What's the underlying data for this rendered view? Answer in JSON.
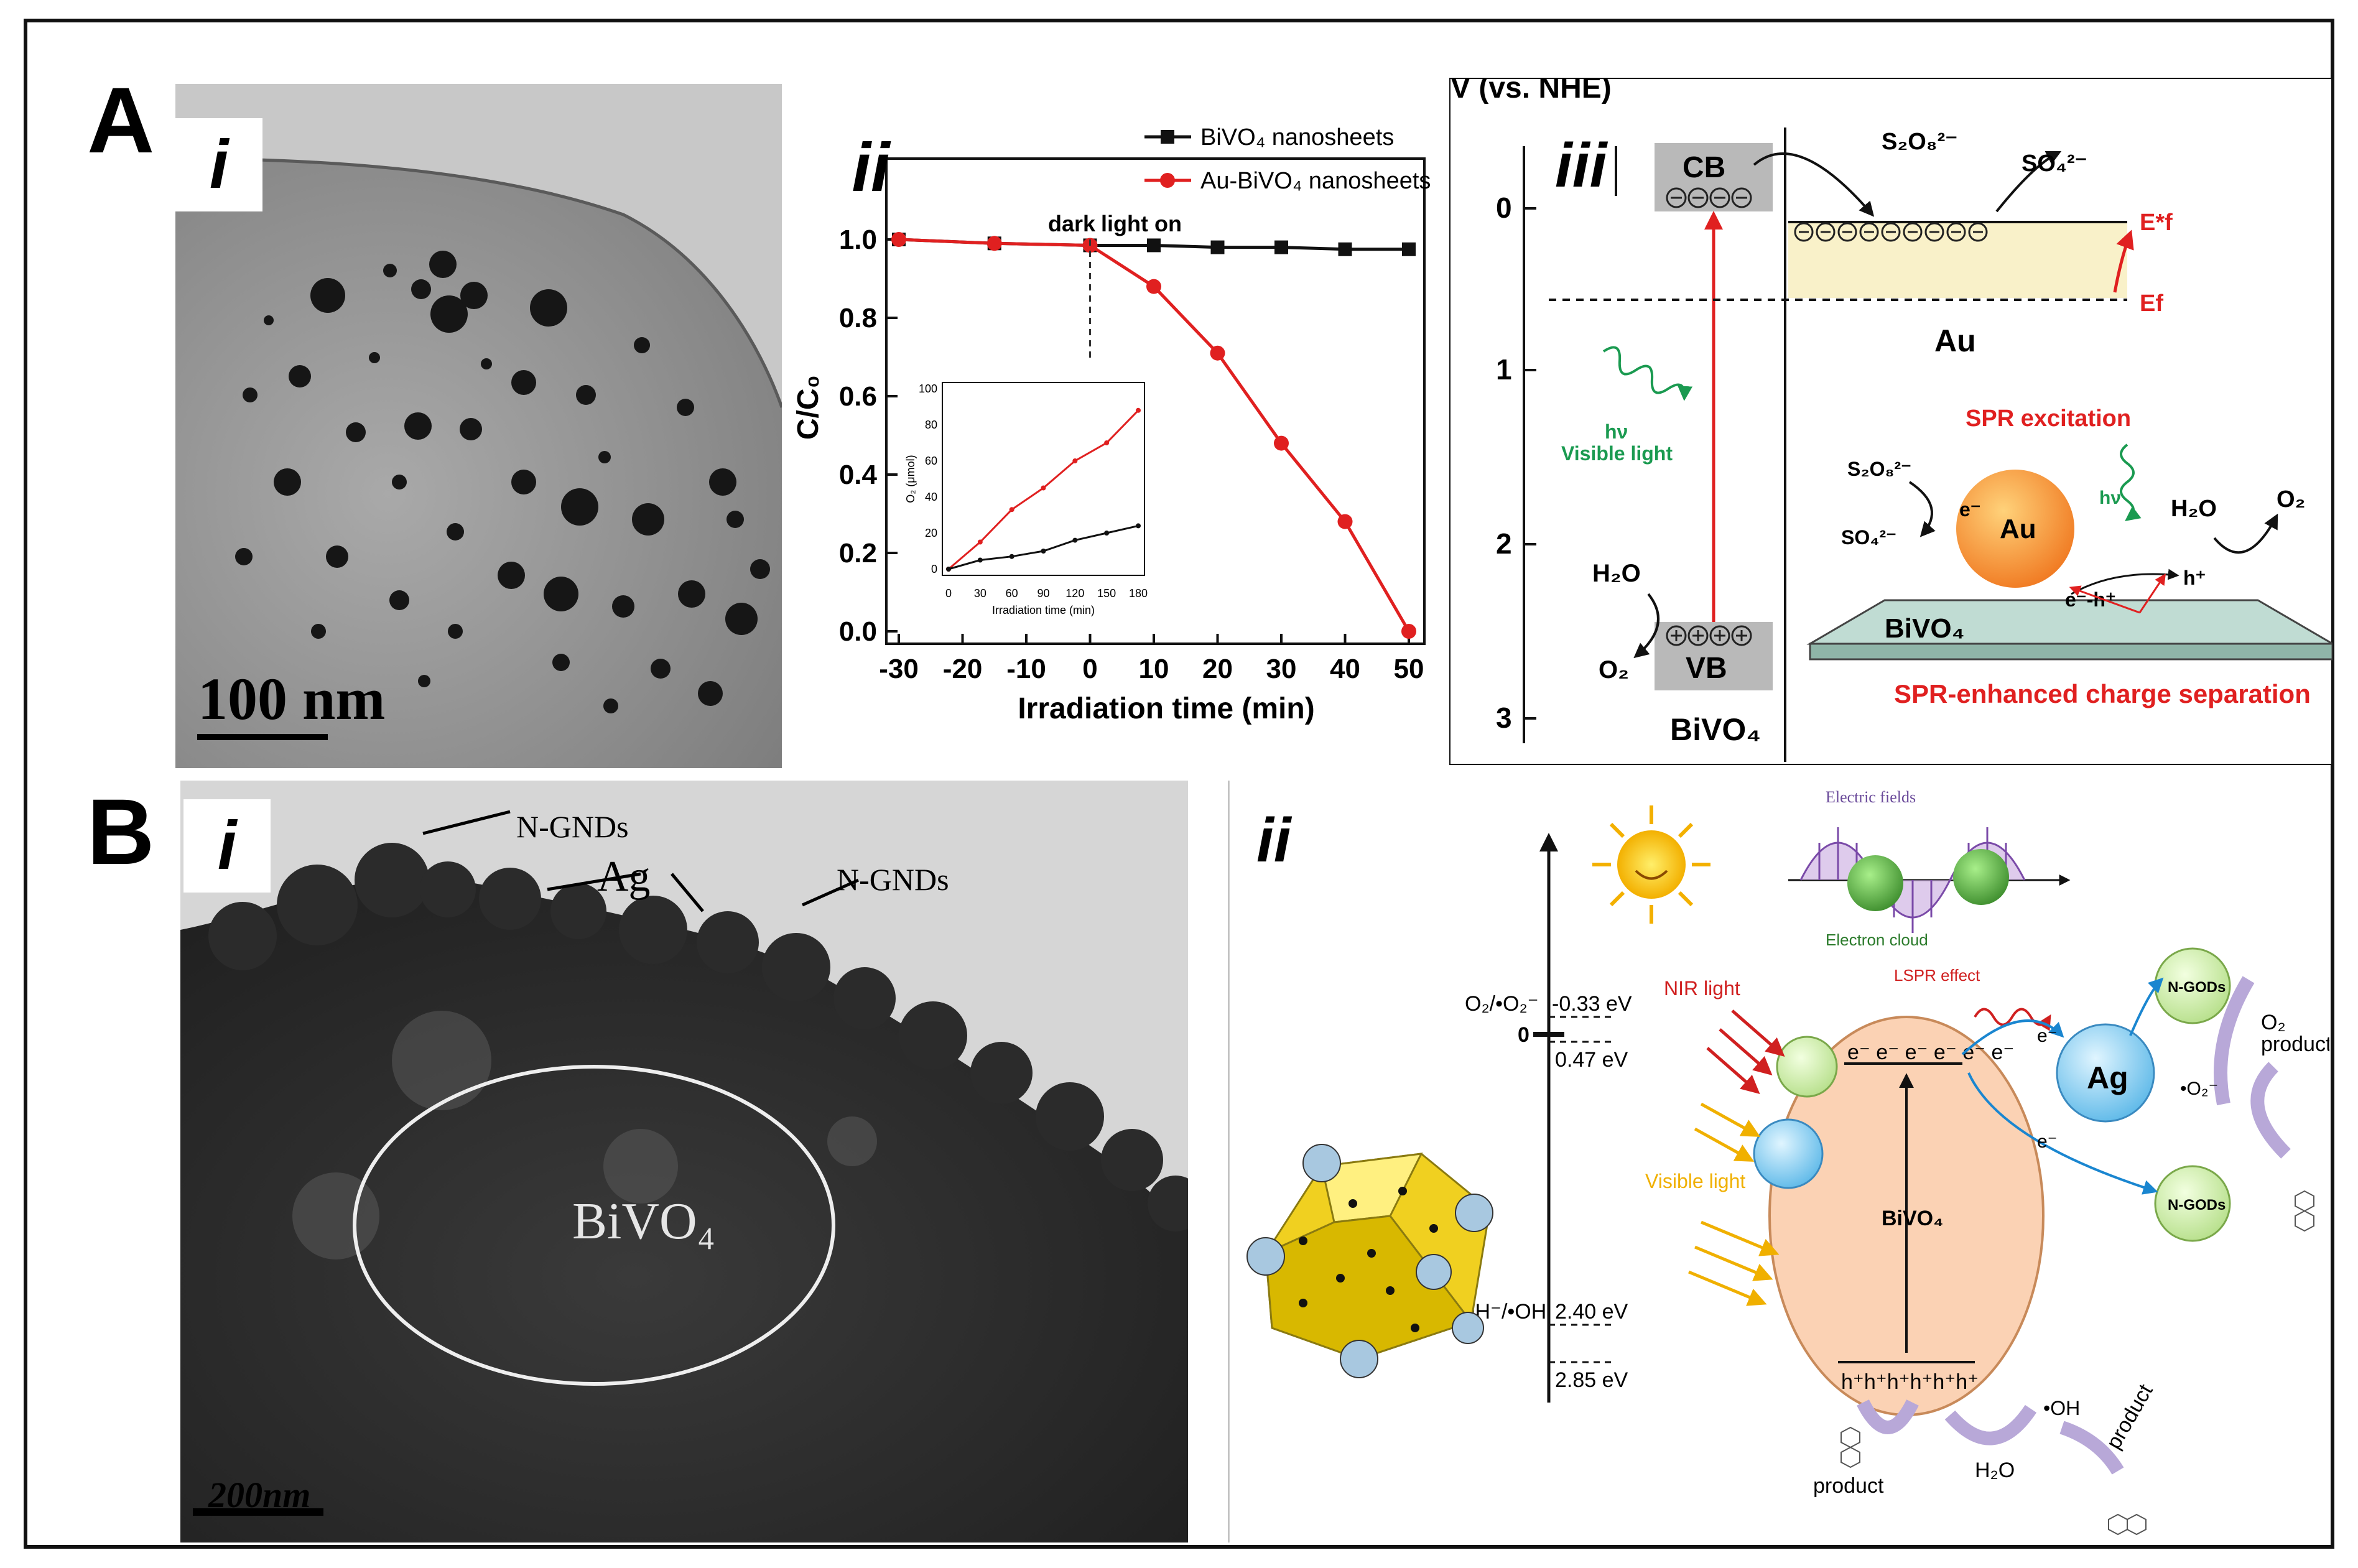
{
  "panel_a": {
    "letter": "A",
    "i": {
      "label": "i",
      "scale_bar": "100 nm"
    },
    "ii": {
      "label": "ii",
      "dark": "dark",
      "light_on": "light on"
    },
    "iii": {
      "label": "iii",
      "y_title": "V (vs. NHE)",
      "y_ticks": [
        "0",
        "1",
        "2",
        "3"
      ],
      "cb": "CB",
      "vb": "VB",
      "s2o8": "S₂O₈²⁻",
      "so4": "SO₄²⁻",
      "ef_star": "E*f",
      "ef": "Ef",
      "au": "Au",
      "hv": "hν",
      "visible_light": "Visible light",
      "h2o": "H₂O",
      "o2": "O₂",
      "bivo4": "BiVO₄",
      "spr_excitation": "SPR excitation",
      "eh_pair": "e⁻-h⁺",
      "e_minus": "e⁻",
      "h_plus": "h⁺",
      "spr_separation": "SPR-enhanced charge separation"
    }
  },
  "panel_b": {
    "letter": "B",
    "i": {
      "label": "i",
      "n_gnds_1": "N-GNDs",
      "ag": "Ag",
      "n_gnds_2": "N-GNDs",
      "bivo4": "BiVO₄",
      "scale_bar": "200nm"
    },
    "ii": {
      "label": "ii",
      "electric_fields": "Electric fields",
      "electron_cloud": "Electron cloud",
      "lspr": "LSPR effect",
      "o2_level": "O₂/•O₂⁻",
      "e_033": "-0.33 eV",
      "zero": "0",
      "e_047": "0.47 eV",
      "oh_level": "OH⁻/•OH",
      "e_240": "2.40 eV",
      "e_285": "2.85 eV",
      "nir_light": "NIR light",
      "visible_light": "Visible light",
      "electrons": "e⁻ e⁻ e⁻ e⁻ e⁻ e⁻",
      "holes": "h⁺h⁺h⁺h⁺h⁺h⁺",
      "bivo4": "BiVO₄",
      "ag": "Ag",
      "n_gods": "N-GODs",
      "o2": "O₂",
      "o2_rad": "•O₂⁻",
      "product": "product",
      "oh_rad": "•OH",
      "h2o": "H₂O",
      "e_minus": "e⁻"
    }
  },
  "chart_data": {
    "type": "line",
    "xlabel": "Irradiation time (min)",
    "ylabel": "C/C₀",
    "xlim": [
      -30,
      50
    ],
    "ylim": [
      0.0,
      1.0
    ],
    "x_ticks": [
      -30,
      -20,
      -10,
      0,
      10,
      20,
      30,
      40,
      50
    ],
    "y_ticks": [
      0.0,
      0.2,
      0.4,
      0.6,
      0.8,
      1.0
    ],
    "series": [
      {
        "name": "BiVO₄ nanosheets",
        "color": "#111111",
        "marker": "square",
        "x": [
          -30,
          -15,
          0,
          10,
          20,
          30,
          40,
          50
        ],
        "y": [
          1.0,
          0.99,
          0.985,
          0.985,
          0.98,
          0.98,
          0.975,
          0.975
        ]
      },
      {
        "name": "Au-BiVO₄ nanosheets",
        "color": "#e02020",
        "marker": "circle",
        "x": [
          -30,
          -15,
          0,
          10,
          20,
          30,
          40,
          50
        ],
        "y": [
          1.0,
          0.99,
          0.985,
          0.88,
          0.71,
          0.48,
          0.28,
          0.0
        ]
      }
    ],
    "inset": {
      "xlabel": "Irradiation time (min)",
      "ylabel": "O₂ (μmol)",
      "xlim": [
        0,
        180
      ],
      "ylim": [
        0,
        100
      ],
      "x_ticks": [
        0,
        30,
        60,
        90,
        120,
        150,
        180
      ],
      "y_ticks": [
        0,
        20,
        40,
        60,
        80,
        100
      ],
      "series": [
        {
          "color": "#e02020",
          "x": [
            0,
            30,
            60,
            90,
            120,
            150,
            180
          ],
          "y": [
            0,
            15,
            33,
            45,
            60,
            70,
            88
          ]
        },
        {
          "color": "#111111",
          "x": [
            0,
            30,
            60,
            90,
            120,
            150,
            180
          ],
          "y": [
            0,
            5,
            7,
            10,
            16,
            20,
            24
          ]
        }
      ]
    }
  }
}
